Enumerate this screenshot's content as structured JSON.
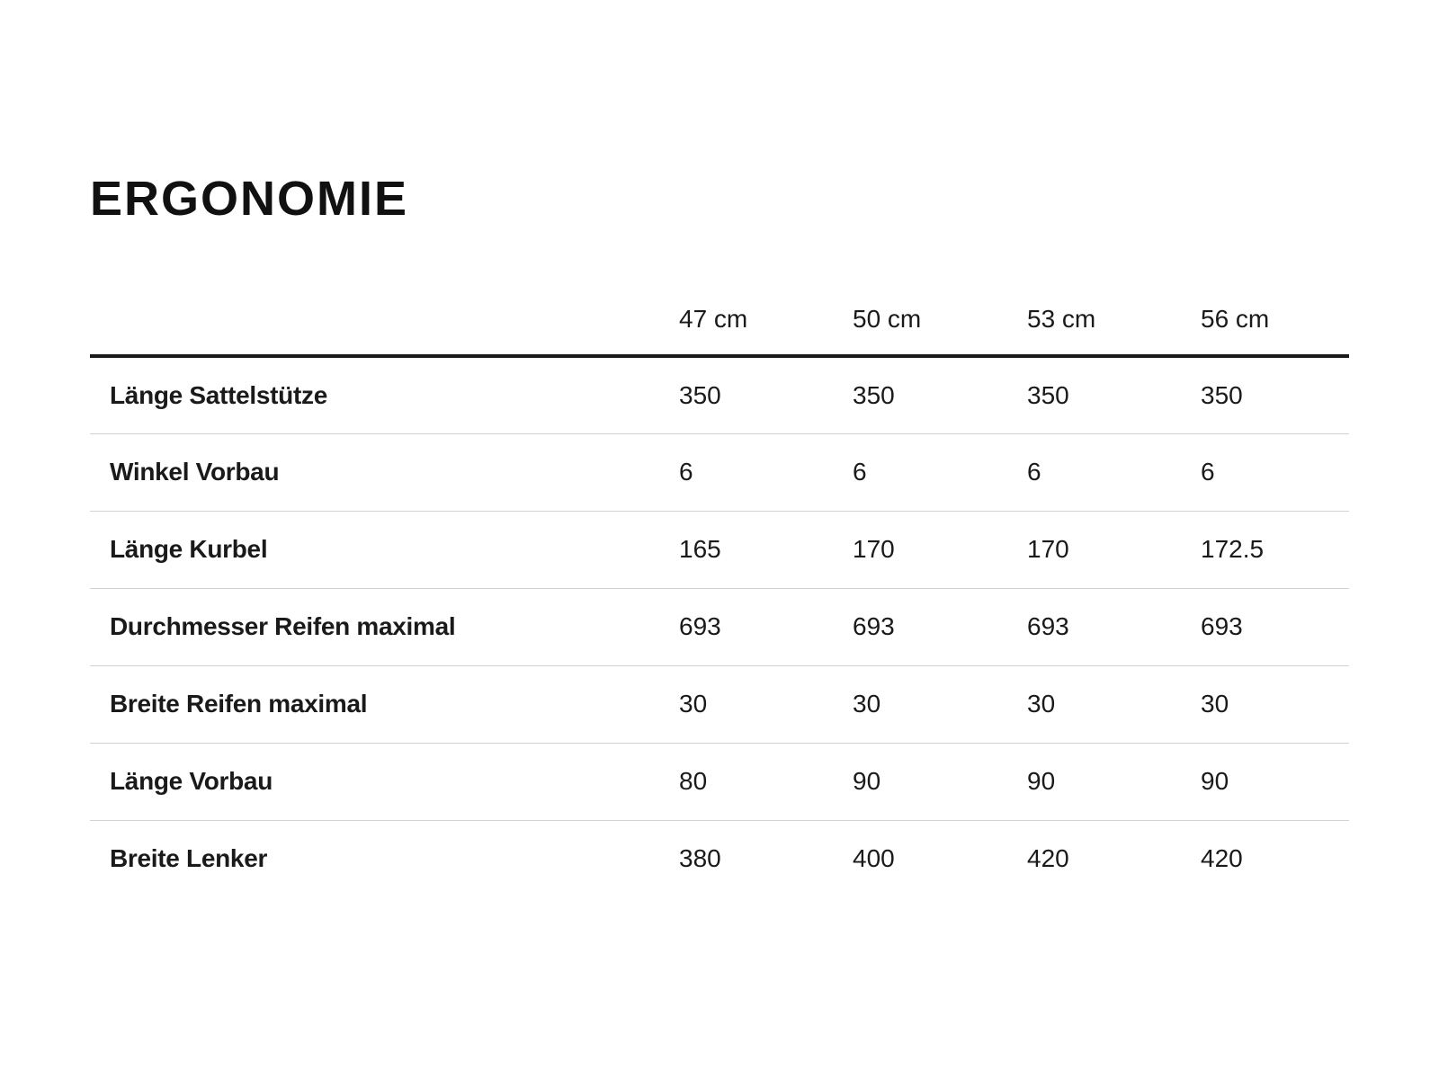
{
  "section": {
    "title": "ERGONOMIE"
  },
  "table": {
    "column_headers": [
      "47 cm",
      "50 cm",
      "53 cm",
      "56 cm"
    ],
    "rows": [
      {
        "label": "Länge Sattelstütze",
        "values": [
          "350",
          "350",
          "350",
          "350"
        ]
      },
      {
        "label": "Winkel Vorbau",
        "values": [
          "6",
          "6",
          "6",
          "6"
        ]
      },
      {
        "label": "Länge Kurbel",
        "values": [
          "165",
          "170",
          "170",
          "172.5"
        ]
      },
      {
        "label": "Durchmesser Reifen maximal",
        "values": [
          "693",
          "693",
          "693",
          "693"
        ]
      },
      {
        "label": "Breite Reifen maximal",
        "values": [
          "30",
          "30",
          "30",
          "30"
        ]
      },
      {
        "label": "Länge Vorbau",
        "values": [
          "80",
          "90",
          "90",
          "90"
        ]
      },
      {
        "label": "Breite Lenker",
        "values": [
          "380",
          "400",
          "420",
          "420"
        ]
      }
    ]
  },
  "colors": {
    "text": "#1a1a1a",
    "title": "#111111",
    "header_rule": "#1a1a1a",
    "row_divider": "#d2d2d2",
    "background": "#ffffff"
  }
}
